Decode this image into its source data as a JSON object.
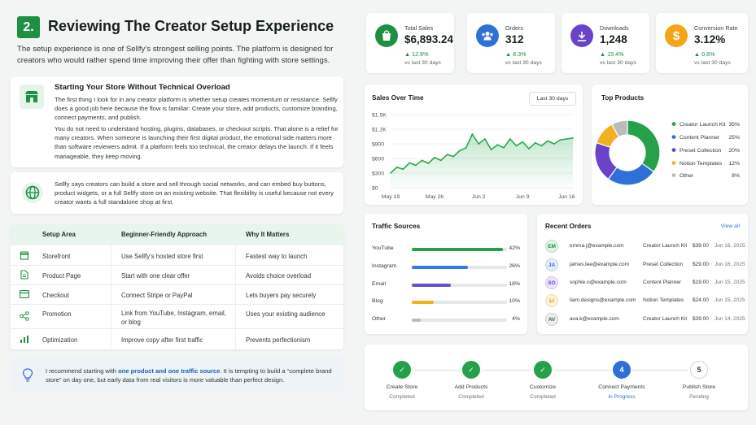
{
  "section": {
    "number": "2.",
    "title": "Reviewing The Creator Setup Experience",
    "intro": "The setup experience is one of Sellfy’s strongest selling points. The platform is designed for creators who would rather spend time improving their offer than fighting with store settings."
  },
  "store_card": {
    "title": "Starting Your Store Without Technical Overload",
    "p1": "The first thing I look for in any creator platform is whether setup creates momentum or resistance. Sellfy does a good job here because the flow is familiar: Create your store, add products, customize branding, connect payments, and publish.",
    "p2": "You do not need to understand hosting, plugins, databases, or checkout scripts. That alone is a relief for many creators. When someone is launching their first digital product, the emotional side matters more than software reviewers admit. If a platform feels too technical, the creator delays the launch. If it feels manageable, they keep moving."
  },
  "sell_card": {
    "text": "Sellfy says creators can build a store and sell through social networks, and can embed buy buttons, product widgets, or a full Sellfy store on an existing website. That flexibility is useful because not every creator wants a full standalone shop at first."
  },
  "setup_table": {
    "headers": [
      "Setup Area",
      "Beginner-Friendly Approach",
      "Why It Matters"
    ],
    "rows": [
      {
        "icon": "storefront-icon",
        "area": "Storefront",
        "approach": "Use Sellfy’s hosted store first",
        "why": "Fastest way to launch"
      },
      {
        "icon": "document-icon",
        "area": "Product Page",
        "approach": "Start with one clear offer",
        "why": "Avoids choice overload"
      },
      {
        "icon": "card-icon",
        "area": "Checkout",
        "approach": "Connect Stripe or PayPal",
        "why": "Lets buyers pay securely"
      },
      {
        "icon": "share-icon",
        "area": "Promotion",
        "approach": "Link from YouTube, Instagram, email, or blog",
        "why": "Uses your existing audience"
      },
      {
        "icon": "bar-chart-icon",
        "area": "Optimization",
        "approach": "Improve copy after first traffic",
        "why": "Prevents perfectionism"
      }
    ]
  },
  "tip": {
    "before": "I recommend starting with ",
    "bold": "one product and one traffic source",
    "after": ". It is tempting to build a “complete brand store” on day one, but early data from real visitors is more valuable than perfect design."
  },
  "stats": [
    {
      "label": "Total Sales",
      "value": "$6,893.24",
      "change": "12.6%",
      "sub": "vs last 30 days",
      "color": "#1f8f43",
      "icon": "shopping-bag-icon"
    },
    {
      "label": "Orders",
      "value": "312",
      "change": "8.3%",
      "sub": "vs last 30 days",
      "color": "#2f6fd8",
      "icon": "users-icon"
    },
    {
      "label": "Downloads",
      "value": "1,248",
      "change": "15.4%",
      "sub": "vs last 30 days",
      "color": "#6a43c9",
      "icon": "download-icon"
    },
    {
      "label": "Conversion Rate",
      "value": "3.12%",
      "change": "0.6%",
      "sub": "vs last 30 days",
      "color": "#f2a516",
      "icon": "dollar-icon"
    }
  ],
  "sales_chart": {
    "title": "Sales Over Time",
    "range": "Last 30 days"
  },
  "top_products": {
    "title": "Top Products"
  },
  "traffic": {
    "title": "Traffic Sources",
    "items": [
      {
        "name": "YouTube",
        "pct": "42%",
        "value": 0.42,
        "color": "#26a04a"
      },
      {
        "name": "Instagram",
        "pct": "26%",
        "value": 0.26,
        "color": "#3a7be0"
      },
      {
        "name": "Email",
        "pct": "18%",
        "value": 0.18,
        "color": "#6a4fd0"
      },
      {
        "name": "Blog",
        "pct": "10%",
        "value": 0.1,
        "color": "#f2b01e"
      },
      {
        "name": "Other",
        "pct": "4%",
        "value": 0.04,
        "color": "#b8bdbb"
      }
    ]
  },
  "orders": {
    "title": "Recent Orders",
    "view_all": "View all",
    "rows": [
      {
        "initials": "EM",
        "email": "emma.j@example.com",
        "product": "Creator Launch Kit",
        "price": "$39.00",
        "date": "Jun 16, 2025",
        "bg": "#e2f3e7",
        "fg": "#1f8f43"
      },
      {
        "initials": "JA",
        "email": "james.lee@example.com",
        "product": "Preset Collection",
        "price": "$29.00",
        "date": "Jun 16, 2025",
        "bg": "#e3ecfa",
        "fg": "#2f6fd8"
      },
      {
        "initials": "SO",
        "email": "sophie.o@example.com",
        "product": "Content Planner",
        "price": "$19.00",
        "date": "Jun 15, 2025",
        "bg": "#ece6f8",
        "fg": "#6a43c9"
      },
      {
        "initials": "LI",
        "email": "liam.designs@example.com",
        "product": "Notion Templates",
        "price": "$24.00",
        "date": "Jun 15, 2025",
        "bg": "#fdf1d9",
        "fg": "#d98e0c"
      },
      {
        "initials": "AV",
        "email": "ava.k@example.com",
        "product": "Creator Launch Kit",
        "price": "$39.00",
        "date": "Jun 14, 2025",
        "bg": "#eceeed",
        "fg": "#4a5650"
      }
    ]
  },
  "steps": [
    {
      "label": "Create Store",
      "status": "Completed",
      "mark": "✓",
      "state": "done"
    },
    {
      "label": "Add Products",
      "status": "Completed",
      "mark": "✓",
      "state": "done"
    },
    {
      "label": "Customize",
      "status": "Completed",
      "mark": "✓",
      "state": "done"
    },
    {
      "label": "Connect Payments",
      "status": "In Progress",
      "mark": "4",
      "state": "active"
    },
    {
      "label": "Publish Store",
      "status": "Pending",
      "mark": "5",
      "state": "pending"
    }
  ],
  "chart_data": [
    {
      "type": "line",
      "x": [
        "May 19",
        "May 20",
        "May 21",
        "May 22",
        "May 23",
        "May 24",
        "May 25",
        "May 26",
        "May 27",
        "May 28",
        "May 29",
        "May 30",
        "May 31",
        "Jun 1",
        "Jun 2",
        "Jun 3",
        "Jun 4",
        "Jun 5",
        "Jun 6",
        "Jun 7",
        "Jun 8",
        "Jun 9",
        "Jun 10",
        "Jun 11",
        "Jun 12",
        "Jun 13",
        "Jun 14",
        "Jun 15",
        "Jun 16",
        "Jun 17"
      ],
      "series": [
        {
          "values": [
            300,
            420,
            380,
            510,
            460,
            560,
            500,
            620,
            560,
            680,
            640,
            760,
            820,
            1100,
            900,
            1000,
            780,
            880,
            820,
            1000,
            860,
            940,
            800,
            920,
            860,
            960,
            900,
            980,
            1000,
            1020
          ]
        }
      ],
      "x_ticks": [
        "May 19",
        "May 26",
        "Jun 2",
        "Jun 9",
        "Jun 16"
      ],
      "y_ticks": [
        "$0",
        "$300",
        "$600",
        "$900",
        "$1.2K",
        "$1.5K"
      ],
      "ylim": [
        0,
        1500
      ],
      "color": "#2aa84f",
      "fill": "area"
    },
    {
      "type": "pie",
      "donut": true,
      "labels": [
        "Creator Launch Kit",
        "Content Planner",
        "Preset Collection",
        "Notion Templates",
        "Other"
      ],
      "values": [
        35,
        25,
        20,
        12,
        8
      ],
      "percent_labels": [
        "35%",
        "25%",
        "20%",
        "12%",
        "8%"
      ],
      "colors": [
        "#26a04a",
        "#2f6fd8",
        "#6a43c9",
        "#f2b01e",
        "#b8bdbb"
      ],
      "legend": "right"
    }
  ]
}
